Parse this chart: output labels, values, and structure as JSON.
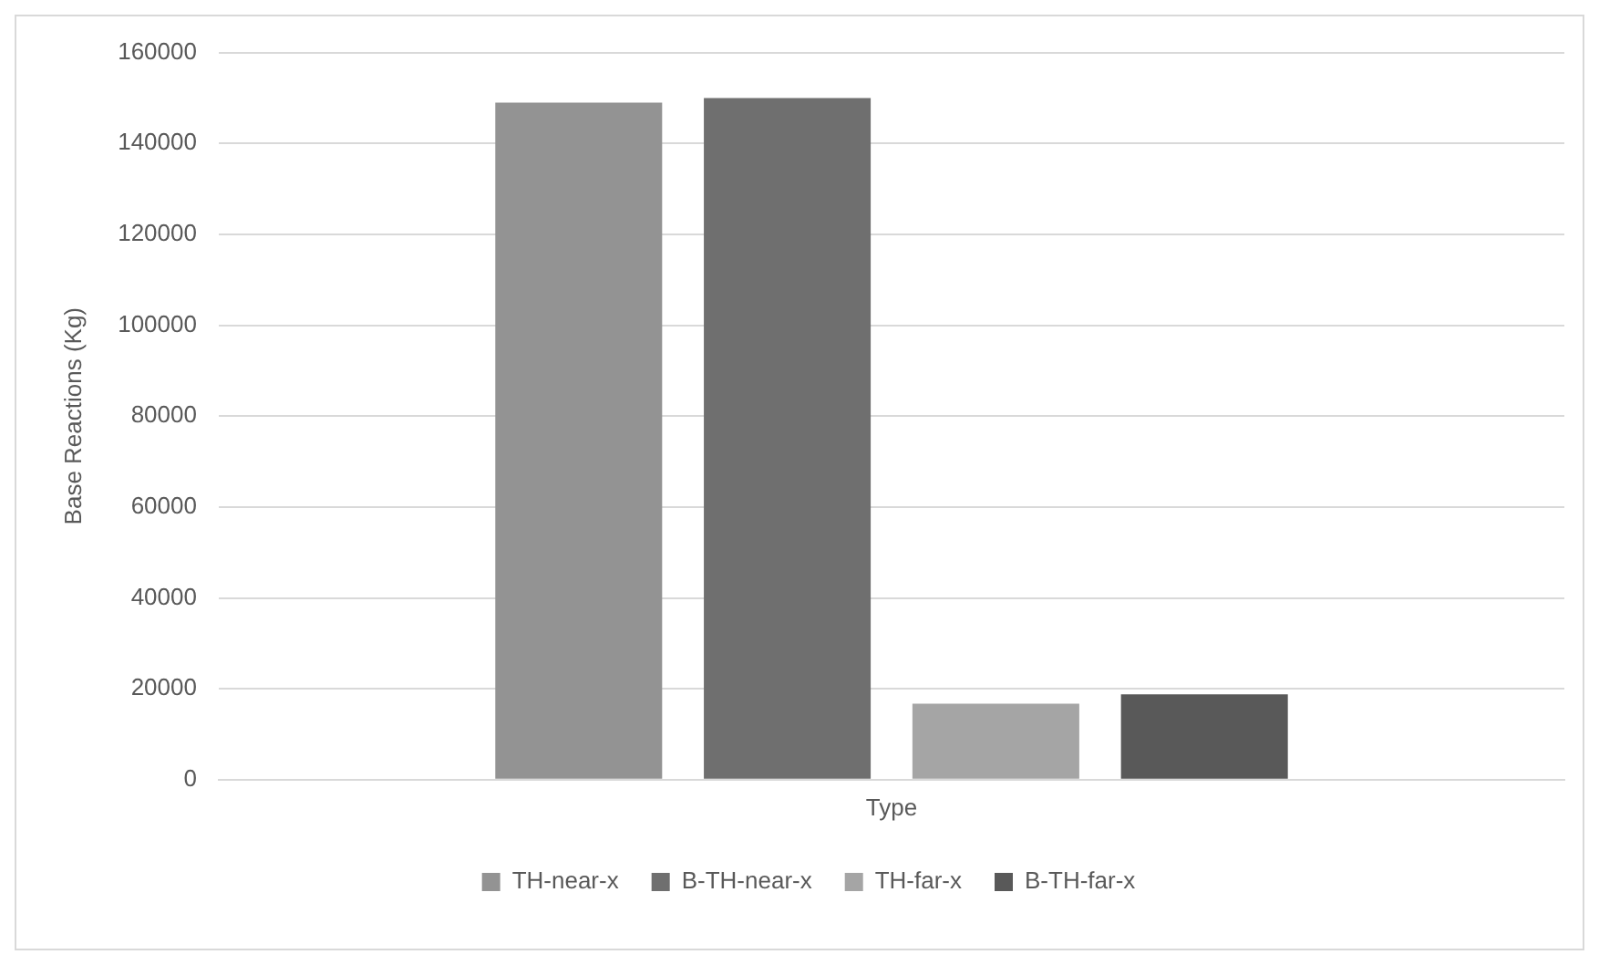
{
  "chart_data": {
    "type": "bar",
    "ylabel": "Base Reactions (Kg)",
    "categories": [
      "Type"
    ],
    "series": [
      {
        "name": "TH-near-x",
        "color": "#939393",
        "values": [
          149000
        ]
      },
      {
        "name": "B-TH-near-x",
        "color": "#6f6f6f",
        "values": [
          150000
        ]
      },
      {
        "name": "TH-far-x",
        "color": "#a5a5a5",
        "values": [
          16700
        ]
      },
      {
        "name": "B-TH-far-x",
        "color": "#595959",
        "values": [
          18800
        ]
      }
    ],
    "ylim": [
      0,
      160000
    ],
    "yticks": [
      0,
      20000,
      40000,
      60000,
      80000,
      100000,
      120000,
      140000,
      160000
    ],
    "grid": "y",
    "legend": "bottom"
  }
}
